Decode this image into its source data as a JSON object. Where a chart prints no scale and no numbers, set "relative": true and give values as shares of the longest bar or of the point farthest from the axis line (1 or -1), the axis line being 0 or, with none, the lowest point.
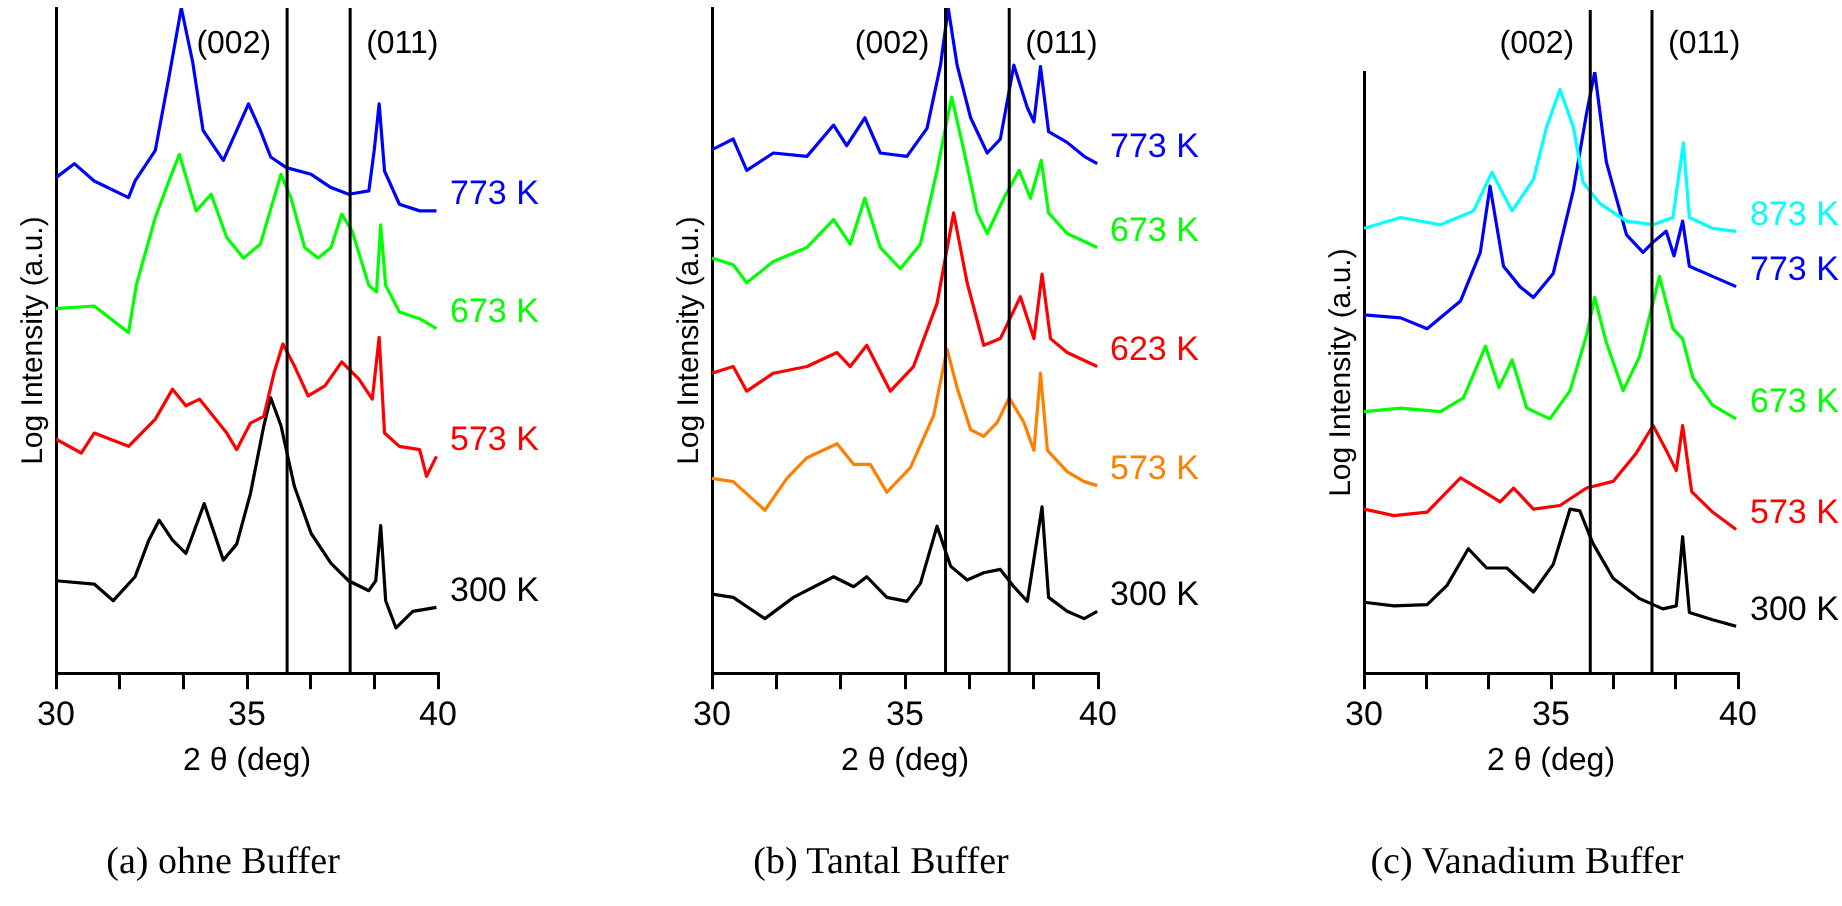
{
  "chart_data": [
    {
      "type": "line",
      "title": "(a) ohne Buffer",
      "xlabel": "2 θ (deg)",
      "ylabel": "Log Intensity (a.u.)",
      "relative": true,
      "legend": false,
      "grid": false,
      "marker": "none",
      "xlim": [
        30,
        40
      ],
      "xticks": [
        30,
        {
          "value": 31.67,
          "label": null
        },
        {
          "value": 33.33,
          "label": null
        },
        35,
        {
          "value": 36.67,
          "label": null
        },
        {
          "value": 38.33,
          "label": null
        },
        40
      ],
      "ref_lines": [
        {
          "axis": "x",
          "value": 36.05,
          "color": "#000000"
        },
        {
          "axis": "x",
          "value": 37.7,
          "color": "#000000"
        }
      ],
      "annotations": [
        "(002)",
        "(011)"
      ],
      "series": [
        {
          "name": "773 K",
          "color": "#0000ff",
          "x": [
            30,
            30.48,
            31.0,
            31.9,
            32.07,
            32.6,
            32.96,
            33.28,
            33.58,
            33.85,
            34.38,
            34.73,
            35.04,
            35.35,
            35.62,
            36.03,
            36.68,
            37.2,
            37.66,
            38.19,
            38.33,
            38.46,
            38.6,
            38.99,
            39.52,
            39.96
          ],
          "values": [
            0.745,
            0.766,
            0.74,
            0.715,
            0.74,
            0.786,
            0.897,
            1.0,
            0.918,
            0.816,
            0.771,
            0.816,
            0.856,
            0.816,
            0.776,
            0.76,
            0.75,
            0.73,
            0.72,
            0.725,
            0.786,
            0.856,
            0.755,
            0.705,
            0.695,
            0.695
          ]
        },
        {
          "name": "673 K",
          "color": "#00ff00",
          "x": [
            30,
            31.0,
            31.9,
            32.1,
            32.6,
            32.99,
            33.23,
            33.67,
            34.06,
            34.47,
            34.91,
            35.35,
            35.71,
            35.89,
            36.15,
            36.51,
            36.86,
            37.2,
            37.48,
            37.75,
            38.19,
            38.39,
            38.5,
            38.63,
            38.99,
            39.52,
            39.96
          ],
          "values": [
            0.548,
            0.552,
            0.512,
            0.583,
            0.685,
            0.745,
            0.78,
            0.695,
            0.72,
            0.655,
            0.624,
            0.645,
            0.715,
            0.75,
            0.715,
            0.64,
            0.624,
            0.64,
            0.69,
            0.665,
            0.583,
            0.573,
            0.674,
            0.583,
            0.543,
            0.533,
            0.518
          ]
        },
        {
          "name": "573 K",
          "color": "#ff0000",
          "x": [
            30,
            30.66,
            31.0,
            31.9,
            32.6,
            33.05,
            33.4,
            33.76,
            34.47,
            34.73,
            35.09,
            35.44,
            35.71,
            35.94,
            36.24,
            36.6,
            37.04,
            37.48,
            37.93,
            38.28,
            38.46,
            38.6,
            38.99,
            39.52,
            39.7,
            39.96
          ],
          "values": [
            0.352,
            0.331,
            0.361,
            0.341,
            0.382,
            0.427,
            0.402,
            0.412,
            0.361,
            0.336,
            0.376,
            0.386,
            0.452,
            0.495,
            0.462,
            0.417,
            0.432,
            0.468,
            0.442,
            0.412,
            0.505,
            0.361,
            0.341,
            0.336,
            0.296,
            0.326
          ]
        },
        {
          "name": "300 K",
          "color": "#000000",
          "x": [
            30,
            31.0,
            31.5,
            32.07,
            32.43,
            32.7,
            33.05,
            33.4,
            33.88,
            34.38,
            34.73,
            35.09,
            35.44,
            35.62,
            35.89,
            36.24,
            36.68,
            37.2,
            37.66,
            38.19,
            38.37,
            38.5,
            38.63,
            38.9,
            39.34,
            39.96
          ],
          "values": [
            0.139,
            0.134,
            0.109,
            0.145,
            0.2,
            0.23,
            0.2,
            0.18,
            0.255,
            0.17,
            0.194,
            0.27,
            0.372,
            0.414,
            0.372,
            0.281,
            0.21,
            0.165,
            0.139,
            0.124,
            0.139,
            0.222,
            0.109,
            0.068,
            0.093,
            0.099
          ]
        }
      ]
    },
    {
      "type": "line",
      "title": "(b) Tantal Buffer",
      "xlabel": "2 θ (deg)",
      "ylabel": "Log Intensity (a.u.)",
      "relative": true,
      "legend": false,
      "grid": false,
      "marker": "none",
      "xlim": [
        30,
        40
      ],
      "xticks": [
        30,
        {
          "value": 31.67,
          "label": null
        },
        {
          "value": 33.33,
          "label": null
        },
        35,
        {
          "value": 36.67,
          "label": null
        },
        {
          "value": 38.33,
          "label": null
        },
        40
      ],
      "ref_lines": [
        {
          "axis": "x",
          "value": 36.05,
          "color": "#000000"
        },
        {
          "axis": "x",
          "value": 37.7,
          "color": "#000000"
        }
      ],
      "annotations": [
        "(002)",
        "(011)"
      ],
      "series": [
        {
          "name": "773 K",
          "color": "#0000ff",
          "x": [
            30,
            30.55,
            30.9,
            31.59,
            32.46,
            33.15,
            33.49,
            33.96,
            34.36,
            35.05,
            35.57,
            35.92,
            36.12,
            36.35,
            36.7,
            37.13,
            37.47,
            37.82,
            38.17,
            38.34,
            38.51,
            38.72,
            39.2,
            39.64,
            39.98
          ],
          "values": [
            0.787,
            0.803,
            0.756,
            0.782,
            0.777,
            0.824,
            0.793,
            0.835,
            0.782,
            0.777,
            0.819,
            0.914,
            1.0,
            0.914,
            0.835,
            0.782,
            0.803,
            0.914,
            0.85,
            0.829,
            0.912,
            0.814,
            0.798,
            0.777,
            0.766
          ]
        },
        {
          "name": "673 K",
          "color": "#00ff00",
          "x": [
            30,
            30.55,
            30.9,
            31.59,
            32.46,
            33.15,
            33.58,
            33.96,
            34.36,
            34.88,
            35.4,
            35.83,
            36.21,
            36.52,
            36.87,
            37.13,
            37.56,
            37.96,
            38.25,
            38.53,
            38.72,
            39.2,
            39.98
          ],
          "values": [
            0.624,
            0.614,
            0.587,
            0.619,
            0.64,
            0.682,
            0.645,
            0.714,
            0.64,
            0.608,
            0.645,
            0.756,
            0.866,
            0.787,
            0.692,
            0.661,
            0.714,
            0.756,
            0.714,
            0.771,
            0.692,
            0.661,
            0.64
          ]
        },
        {
          "name": "623 K",
          "color": "#ff0000",
          "x": [
            30,
            30.55,
            30.9,
            31.59,
            32.46,
            33.24,
            33.58,
            34.01,
            34.62,
            35.22,
            35.83,
            36.26,
            36.61,
            37.04,
            37.47,
            37.99,
            38.34,
            38.55,
            38.77,
            39.2,
            39.98
          ],
          "values": [
            0.451,
            0.461,
            0.424,
            0.451,
            0.461,
            0.482,
            0.461,
            0.493,
            0.424,
            0.461,
            0.556,
            0.692,
            0.587,
            0.493,
            0.503,
            0.566,
            0.503,
            0.6,
            0.503,
            0.482,
            0.461
          ]
        },
        {
          "name": "573 K",
          "color": "#ff8000",
          "x": [
            30,
            30.55,
            31.37,
            31.94,
            32.46,
            33.24,
            33.67,
            34.1,
            34.53,
            35.14,
            35.74,
            36.09,
            36.35,
            36.7,
            37.04,
            37.39,
            37.7,
            38.08,
            38.34,
            38.51,
            38.69,
            39.2,
            39.64,
            39.98
          ],
          "values": [
            0.293,
            0.288,
            0.245,
            0.293,
            0.324,
            0.345,
            0.314,
            0.314,
            0.272,
            0.309,
            0.387,
            0.487,
            0.429,
            0.366,
            0.356,
            0.377,
            0.414,
            0.377,
            0.335,
            0.451,
            0.335,
            0.303,
            0.288,
            0.282
          ]
        },
        {
          "name": "300 K",
          "color": "#000000",
          "x": [
            30,
            30.55,
            31.37,
            32.11,
            33.15,
            33.67,
            34.01,
            34.53,
            35.05,
            35.4,
            35.83,
            36.18,
            36.61,
            37.04,
            37.47,
            37.82,
            38.17,
            38.55,
            38.72,
            39.2,
            39.64,
            39.98
          ],
          "values": [
            0.119,
            0.114,
            0.082,
            0.114,
            0.145,
            0.13,
            0.145,
            0.114,
            0.108,
            0.135,
            0.221,
            0.161,
            0.14,
            0.151,
            0.156,
            0.13,
            0.108,
            0.25,
            0.114,
            0.093,
            0.082,
            0.093
          ]
        }
      ]
    },
    {
      "type": "line",
      "title": "(c) Vanadium Buffer",
      "xlabel": "2 θ (deg)",
      "ylabel": "Log Intensity (a.u.)",
      "relative": true,
      "legend": false,
      "grid": false,
      "marker": "none",
      "xlim": [
        30,
        40
      ],
      "xticks": [
        30,
        {
          "value": 31.67,
          "label": null
        },
        {
          "value": 33.33,
          "label": null
        },
        35,
        {
          "value": 36.67,
          "label": null
        },
        {
          "value": 38.33,
          "label": null
        },
        40
      ],
      "ref_lines": [
        {
          "axis": "x",
          "value": 36.05,
          "color": "#000000"
        },
        {
          "axis": "x",
          "value": 37.7,
          "color": "#000000"
        }
      ],
      "annotations": [
        "(002)",
        "(011)"
      ],
      "series": [
        {
          "name": "873 K",
          "color": "#00ffff",
          "x": [
            30,
            30.98,
            32.04,
            32.93,
            33.42,
            33.96,
            34.53,
            34.88,
            35.24,
            35.6,
            35.86,
            36.31,
            37.02,
            37.73,
            38.26,
            38.54,
            38.7,
            39.32,
            39.95
          ],
          "values": [
            0.74,
            0.758,
            0.746,
            0.769,
            0.833,
            0.769,
            0.821,
            0.908,
            0.971,
            0.908,
            0.816,
            0.781,
            0.752,
            0.746,
            0.758,
            0.882,
            0.758,
            0.74,
            0.735
          ]
        },
        {
          "name": "773 K",
          "color": "#0000ff",
          "x": [
            30,
            30.98,
            31.69,
            32.58,
            33.11,
            33.37,
            33.73,
            34.17,
            34.53,
            35.06,
            35.6,
            35.95,
            36.17,
            36.48,
            37.02,
            37.46,
            37.73,
            38.08,
            38.29,
            38.52,
            38.7,
            39.32,
            39.95
          ],
          "values": [
            0.596,
            0.591,
            0.573,
            0.619,
            0.7,
            0.81,
            0.677,
            0.643,
            0.625,
            0.665,
            0.804,
            0.931,
            1.0,
            0.85,
            0.729,
            0.7,
            0.717,
            0.735,
            0.694,
            0.752,
            0.677,
            0.66,
            0.643
          ]
        },
        {
          "name": "673 K",
          "color": "#00ff00",
          "x": [
            30,
            30.98,
            32.04,
            32.66,
            33.25,
            33.61,
            33.96,
            34.35,
            34.97,
            35.51,
            35.95,
            36.17,
            36.48,
            36.93,
            37.37,
            37.9,
            38.26,
            38.52,
            38.79,
            39.32,
            39.95
          ],
          "values": [
            0.435,
            0.441,
            0.435,
            0.458,
            0.544,
            0.475,
            0.521,
            0.441,
            0.423,
            0.47,
            0.562,
            0.625,
            0.55,
            0.47,
            0.527,
            0.66,
            0.573,
            0.556,
            0.492,
            0.446,
            0.423
          ]
        },
        {
          "name": "573 K",
          "color": "#ff0000",
          "x": [
            30,
            30.8,
            31.69,
            32.58,
            33.2,
            33.64,
            34.0,
            34.53,
            35.24,
            35.95,
            36.66,
            37.28,
            37.73,
            38.08,
            38.35,
            38.52,
            38.76,
            39.32,
            39.95
          ],
          "values": [
            0.273,
            0.262,
            0.268,
            0.325,
            0.302,
            0.285,
            0.308,
            0.273,
            0.279,
            0.308,
            0.319,
            0.366,
            0.412,
            0.371,
            0.337,
            0.412,
            0.302,
            0.268,
            0.239
          ]
        },
        {
          "name": "300 K",
          "color": "#000000",
          "x": [
            30,
            30.8,
            31.69,
            32.22,
            32.79,
            33.28,
            33.82,
            34.53,
            35.06,
            35.51,
            35.77,
            36.12,
            36.66,
            37.37,
            37.99,
            38.35,
            38.52,
            38.7,
            39.32,
            39.95
          ],
          "values": [
            0.118,
            0.112,
            0.114,
            0.146,
            0.207,
            0.175,
            0.175,
            0.135,
            0.181,
            0.273,
            0.27,
            0.216,
            0.158,
            0.124,
            0.107,
            0.112,
            0.227,
            0.101,
            0.089,
            0.078
          ]
        }
      ]
    }
  ]
}
